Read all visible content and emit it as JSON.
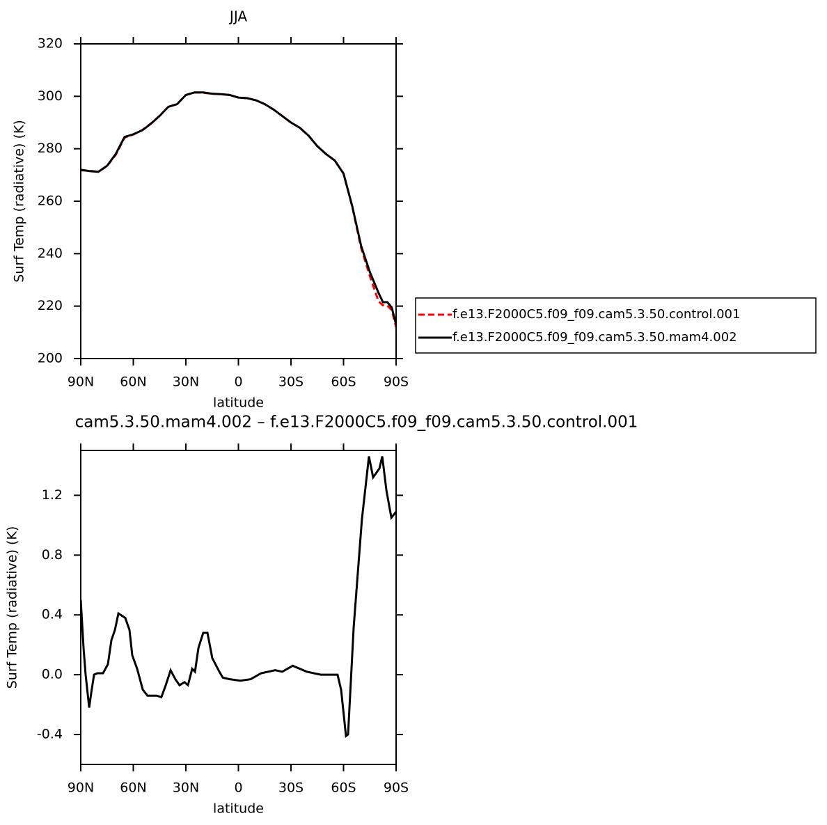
{
  "chart_data": [
    {
      "type": "line",
      "title": "JJA",
      "xlabel": "latitude",
      "ylabel": "Surf Temp (radiative) (K)",
      "x": [
        90,
        85,
        80,
        75,
        70,
        65,
        60,
        55,
        50,
        45,
        40,
        35,
        30,
        25,
        20,
        15,
        10,
        5,
        0,
        -5,
        -10,
        -15,
        -20,
        -25,
        -30,
        -35,
        -40,
        -45,
        -50,
        -55,
        -60,
        -65,
        -70,
        -75,
        -80,
        -82.5,
        -85,
        -87.5,
        -90
      ],
      "series": [
        {
          "name": "f.e13.F2000C5.f09_f09.cam5.3.50.control.001",
          "color": "#ff0000",
          "dash": true,
          "values": [
            271.8,
            271.6,
            271.2,
            273.4,
            277.7,
            284.2,
            285.4,
            287.1,
            289.6,
            292.6,
            296.0,
            297.0,
            300.5,
            301.5,
            301.3,
            301.0,
            300.8,
            300.5,
            299.5,
            299.3,
            298.5,
            297.0,
            295.0,
            292.5,
            290.0,
            288.0,
            285.0,
            281.0,
            278.0,
            275.5,
            270.6,
            257.8,
            242.2,
            231.5,
            221.8,
            220.3,
            220.2,
            218.5,
            212.0
          ]
        },
        {
          "name": "f.e13.F2000C5.f09_f09.cam5.3.50.mam4.002",
          "color": "#000000",
          "dash": false,
          "values": [
            272.0,
            271.5,
            271.2,
            273.5,
            278.0,
            284.5,
            285.5,
            287.0,
            289.5,
            292.5,
            296.0,
            297.0,
            300.5,
            301.5,
            301.5,
            301.0,
            300.8,
            300.5,
            299.5,
            299.3,
            298.5,
            297.0,
            295.0,
            292.5,
            290.0,
            288.0,
            285.0,
            281.0,
            278.0,
            275.5,
            270.5,
            258.0,
            243.0,
            233.0,
            225.0,
            221.5,
            221.5,
            219.5,
            213.0
          ]
        }
      ],
      "xlim": [
        90,
        -90
      ],
      "xticks": [
        {
          "value": 90,
          "label": "90N"
        },
        {
          "value": 60,
          "label": "60N"
        },
        {
          "value": 30,
          "label": "30N"
        },
        0,
        {
          "value": -30,
          "label": "30S"
        },
        {
          "value": -60,
          "label": "60S"
        },
        {
          "value": -90,
          "label": "90S"
        }
      ],
      "ylim": [
        200,
        320
      ],
      "yticks": [
        200,
        220,
        240,
        260,
        280,
        300,
        320
      ],
      "legend": "right"
    },
    {
      "type": "line",
      "title": "cam5.3.50.mam4.002 – f.e13.F2000C5.f09_f09.cam5.3.50.control.001",
      "xlabel": "latitude",
      "ylabel": "Surf Temp (radiative) (K)",
      "x": [
        90,
        88.4,
        87.2,
        85.2,
        84,
        82.4,
        80.5,
        77.3,
        74.5,
        72.5,
        70.5,
        68.5,
        64.6,
        62.2,
        60.6,
        57.8,
        54.6,
        51.9,
        46.7,
        44,
        41.5,
        38.7,
        36,
        33.6,
        30.8,
        28.8,
        26.4,
        24.8,
        22.8,
        20.1,
        17.7,
        14.9,
        10.9,
        8.9,
        4.9,
        -1.1,
        -7,
        -13,
        -21,
        -25,
        -31,
        -39,
        -47,
        -56.6,
        -58.6,
        -61.4,
        -62.6,
        -65.8,
        -70.5,
        -74.5,
        -76.9,
        -80.5,
        -82.1,
        -84.5,
        -87.3,
        -90
      ],
      "color": "#000000",
      "values": [
        0.5,
        0.18,
        0,
        -0.22,
        -0.12,
        0,
        0.01,
        0.01,
        0.07,
        0.23,
        0.3,
        0.41,
        0.38,
        0.3,
        0.13,
        0.04,
        -0.1,
        -0.14,
        -0.14,
        -0.15,
        -0.07,
        0.03,
        -0.03,
        -0.07,
        -0.05,
        -0.07,
        0.04,
        0.02,
        0.18,
        0.28,
        0.28,
        0.11,
        0.02,
        -0.02,
        -0.03,
        -0.04,
        -0.03,
        0.01,
        0.03,
        0.02,
        0.06,
        0.02,
        0,
        0,
        -0.1,
        -0.41,
        -0.4,
        0.32,
        1.04,
        1.46,
        1.32,
        1.38,
        1.46,
        1.23,
        1.05,
        1.09
      ],
      "xlim": [
        90,
        -90
      ],
      "xticks": [
        {
          "value": 90,
          "label": "90N"
        },
        {
          "value": 60,
          "label": "60N"
        },
        {
          "value": 30,
          "label": "30N"
        },
        0,
        {
          "value": -30,
          "label": "30S"
        },
        {
          "value": -60,
          "label": "60S"
        },
        {
          "value": -90,
          "label": "90S"
        }
      ],
      "ylim": [
        -0.6,
        1.5
      ],
      "yticks": [
        -0.4,
        {
          "value": 0,
          "label": "0.0"
        },
        0.4,
        0.8,
        1.2
      ]
    }
  ]
}
